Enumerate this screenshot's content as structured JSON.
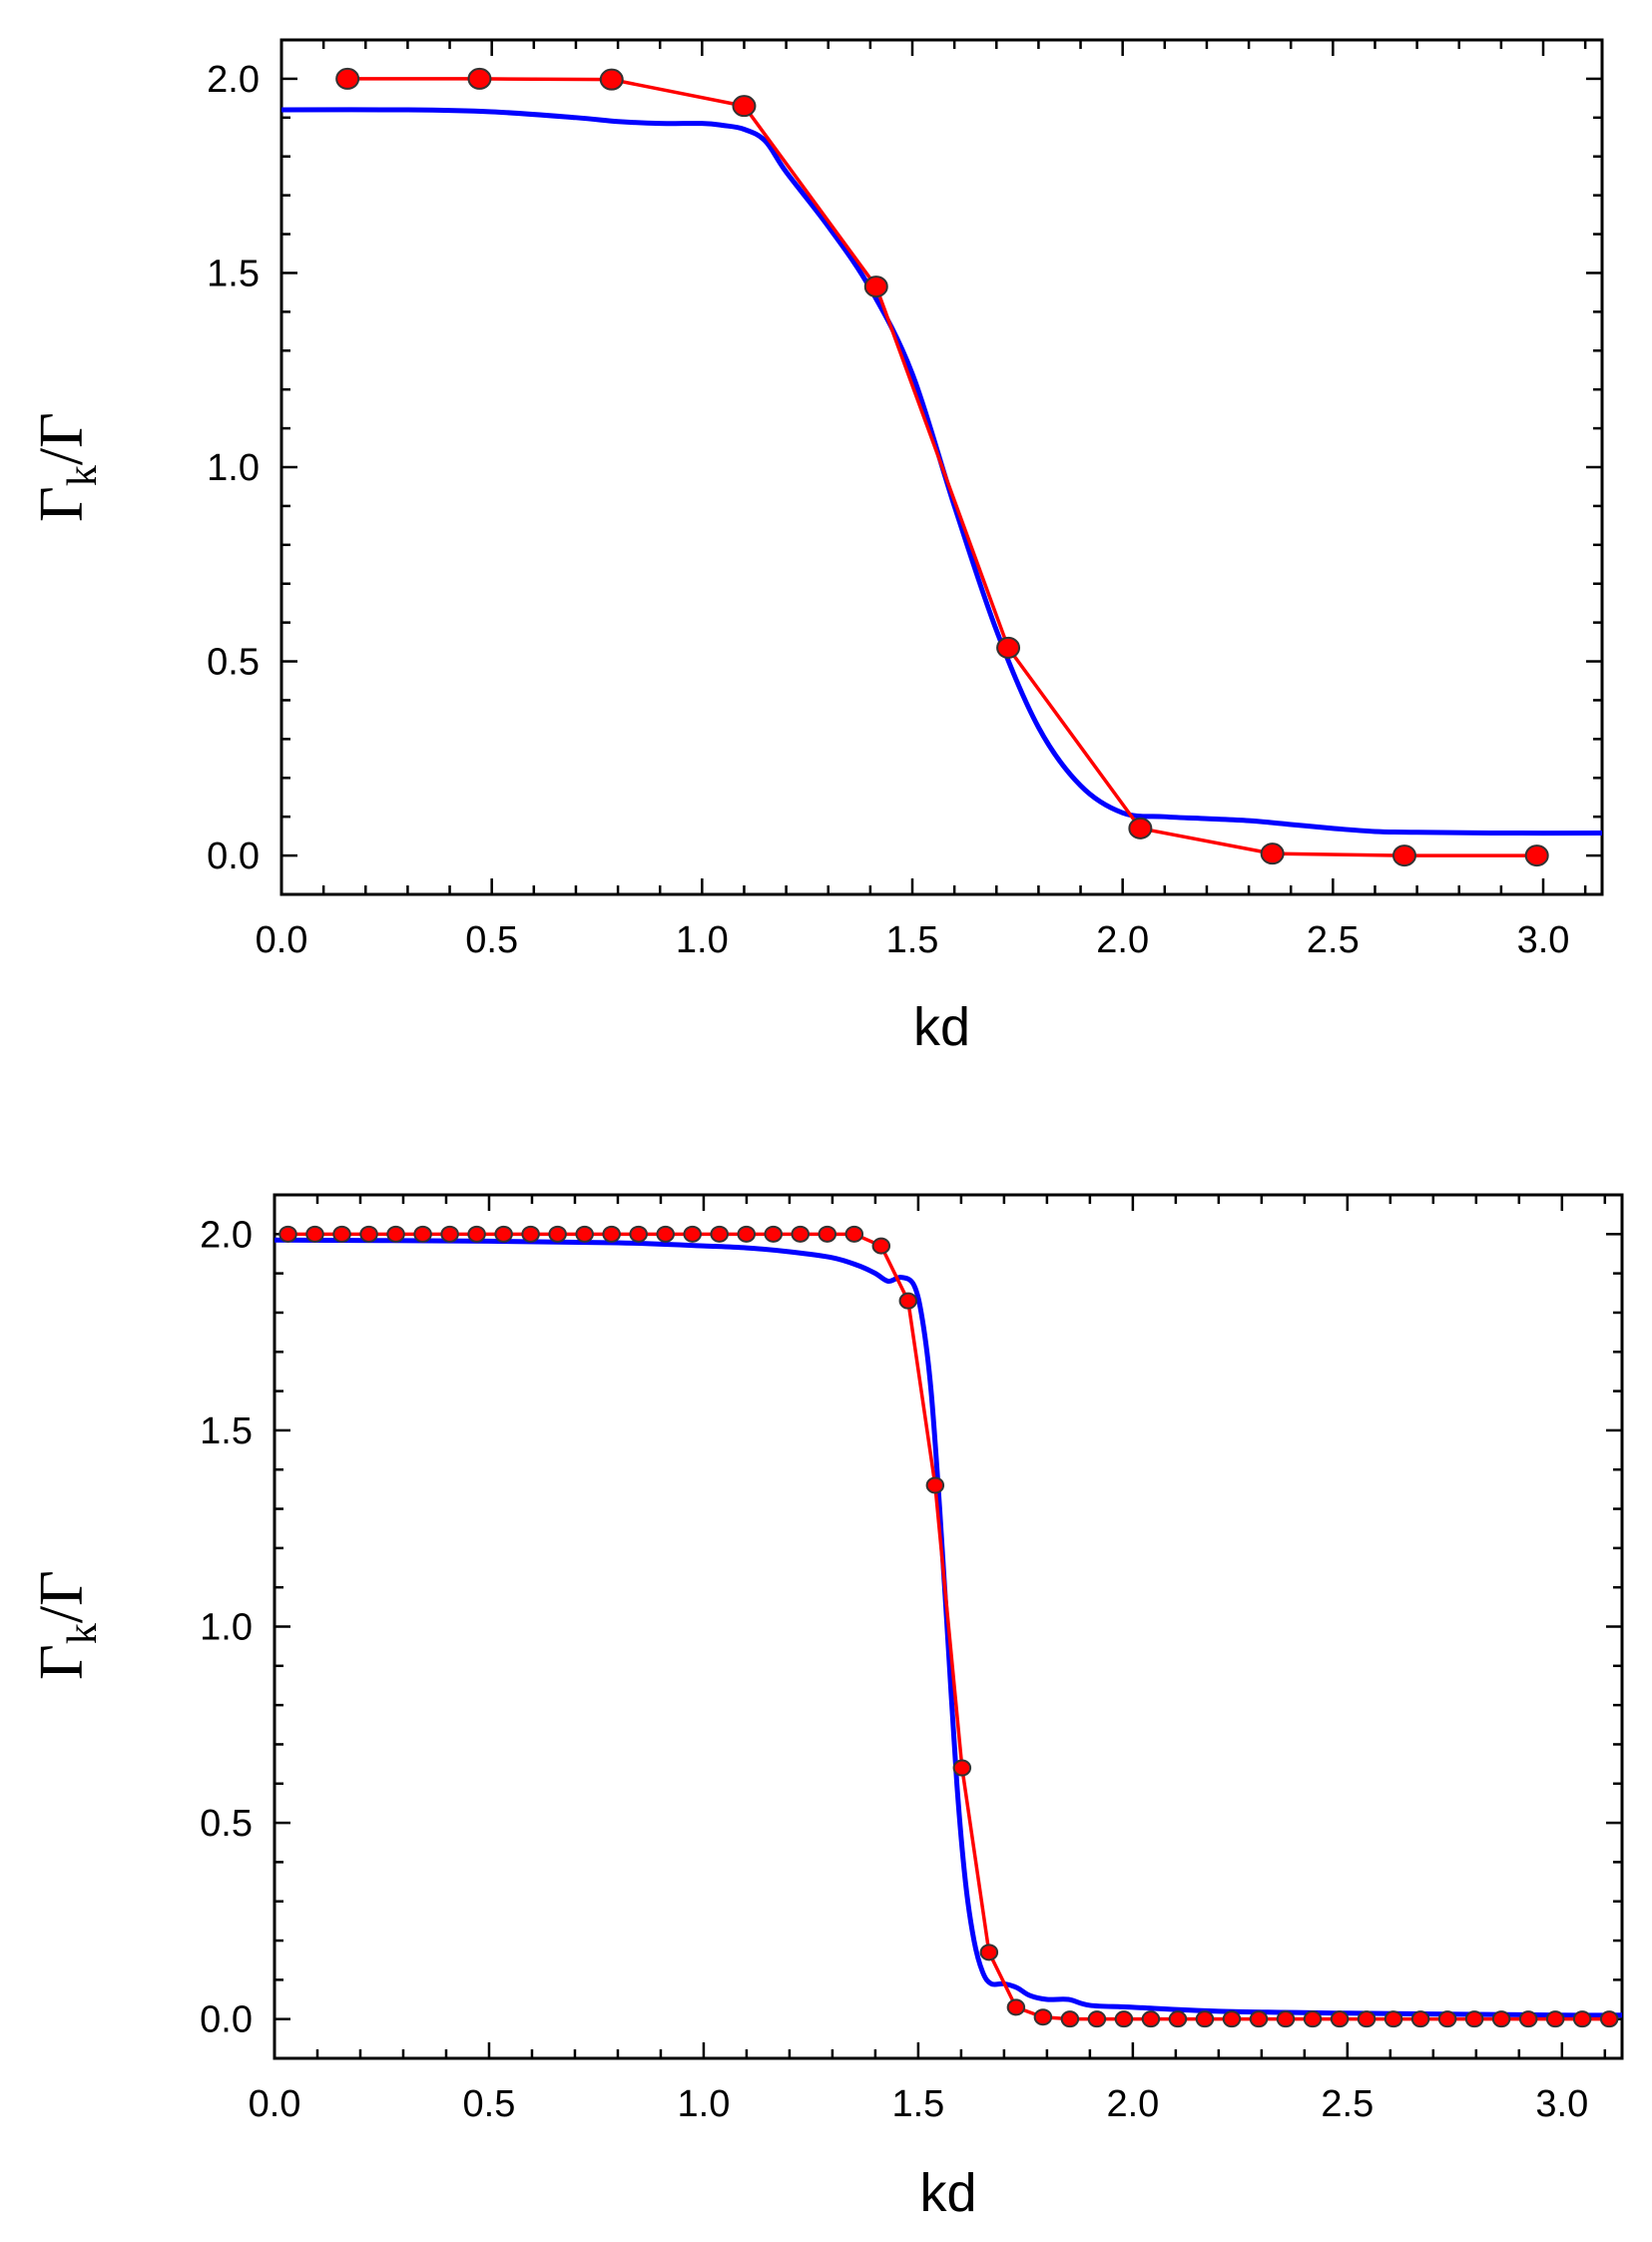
{
  "chart_data": [
    {
      "type": "line",
      "xlabel": "kd",
      "ylabel_main": "Γ",
      "ylabel_sub": "k",
      "ylabel_tail": "/Γ",
      "xlim": [
        0.0,
        3.14
      ],
      "ylim": [
        -0.1,
        2.1
      ],
      "xticks": [
        0.0,
        0.5,
        1.0,
        1.5,
        2.0,
        2.5,
        3.0
      ],
      "yticks": [
        0.0,
        0.5,
        1.0,
        1.5,
        2.0
      ],
      "xtick_labels": [
        "0.0",
        "0.5",
        "1.0",
        "1.5",
        "2.0",
        "2.5",
        "3.0"
      ],
      "ytick_labels": [
        "0.0",
        "0.5",
        "1.0",
        "1.5",
        "2.0"
      ],
      "grid": false,
      "series": [
        {
          "color": "#0000ff",
          "style": "line",
          "x": [
            0.0,
            0.3,
            0.5,
            0.7,
            0.8,
            0.9,
            1.0,
            1.05,
            1.1,
            1.15,
            1.2,
            1.3,
            1.4,
            1.5,
            1.6,
            1.7,
            1.8,
            1.9,
            2.0,
            2.1,
            2.2,
            2.3,
            2.4,
            2.5,
            2.6,
            2.7,
            2.9,
            3.14
          ],
          "y": [
            1.92,
            1.92,
            1.915,
            1.9,
            1.89,
            1.885,
            1.885,
            1.88,
            1.87,
            1.84,
            1.76,
            1.62,
            1.46,
            1.24,
            0.9,
            0.58,
            0.33,
            0.18,
            0.11,
            0.1,
            0.095,
            0.09,
            0.08,
            0.07,
            0.062,
            0.06,
            0.058,
            0.058
          ]
        },
        {
          "color": "#ff0000",
          "style": "line-markers",
          "x": [
            0.157,
            0.471,
            0.785,
            1.1,
            1.414,
            1.728,
            2.042,
            2.356,
            2.67,
            2.985
          ],
          "y": [
            2.0,
            2.0,
            1.998,
            1.93,
            1.465,
            0.535,
            0.07,
            0.005,
            0.0,
            0.0
          ]
        }
      ]
    },
    {
      "type": "line",
      "xlabel": "kd",
      "ylabel_main": "Γ",
      "ylabel_sub": "k",
      "ylabel_tail": "/Γ",
      "xlim": [
        0.0,
        3.14
      ],
      "ylim": [
        -0.1,
        2.1
      ],
      "xticks": [
        0.0,
        0.5,
        1.0,
        1.5,
        2.0,
        2.5,
        3.0
      ],
      "yticks": [
        0.0,
        0.5,
        1.0,
        1.5,
        2.0
      ],
      "xtick_labels": [
        "0.0",
        "0.5",
        "1.0",
        "1.5",
        "2.0",
        "2.5",
        "3.0"
      ],
      "ytick_labels": [
        "0.0",
        "0.5",
        "1.0",
        "1.5",
        "2.0"
      ],
      "grid": false,
      "series": [
        {
          "color": "#0000ff",
          "style": "line",
          "x": [
            0.0,
            0.5,
            0.8,
            1.0,
            1.1,
            1.2,
            1.3,
            1.36,
            1.4,
            1.43,
            1.46,
            1.49,
            1.51,
            1.53,
            1.55,
            1.57,
            1.59,
            1.61,
            1.63,
            1.65,
            1.67,
            1.7,
            1.73,
            1.76,
            1.8,
            1.85,
            1.9,
            2.0,
            2.2,
            2.5,
            3.0,
            3.14
          ],
          "y": [
            1.985,
            1.982,
            1.978,
            1.97,
            1.965,
            1.955,
            1.94,
            1.92,
            1.9,
            1.88,
            1.89,
            1.87,
            1.78,
            1.6,
            1.3,
            0.95,
            0.6,
            0.35,
            0.2,
            0.12,
            0.09,
            0.09,
            0.08,
            0.06,
            0.05,
            0.05,
            0.035,
            0.03,
            0.02,
            0.015,
            0.01,
            0.01
          ]
        },
        {
          "color": "#ff0000",
          "style": "line-markers",
          "x": [
            0.0314,
            0.0942,
            0.1571,
            0.2199,
            0.2827,
            0.3456,
            0.4084,
            0.4712,
            0.5341,
            0.5969,
            0.6597,
            0.7226,
            0.7854,
            0.8482,
            0.9111,
            0.9739,
            1.0367,
            1.0996,
            1.1624,
            1.2252,
            1.2881,
            1.3509,
            1.4137,
            1.4765,
            1.5394,
            1.6022,
            1.665,
            1.7279,
            1.7907,
            1.8535,
            1.9164,
            1.9792,
            2.042,
            2.1049,
            2.1677,
            2.2305,
            2.2934,
            2.3562,
            2.419,
            2.4819,
            2.5447,
            2.6075,
            2.6704,
            2.7332,
            2.796,
            2.8588,
            2.9217,
            2.9845,
            3.0473,
            3.1102
          ],
          "y": [
            2.0,
            2.0,
            2.0,
            2.0,
            2.0,
            2.0,
            2.0,
            2.0,
            2.0,
            2.0,
            2.0,
            2.0,
            2.0,
            2.0,
            2.0,
            2.0,
            2.0,
            2.0,
            2.0,
            2.0,
            2.0,
            2.0,
            1.97,
            1.83,
            1.36,
            0.64,
            0.17,
            0.03,
            0.005,
            0.0,
            0.0,
            0.0,
            0.0,
            0.0,
            0.0,
            0.0,
            0.0,
            0.0,
            0.0,
            0.0,
            0.0,
            0.0,
            0.0,
            0.0,
            0.0,
            0.0,
            0.0,
            0.0,
            0.0,
            0.0
          ]
        }
      ]
    }
  ]
}
